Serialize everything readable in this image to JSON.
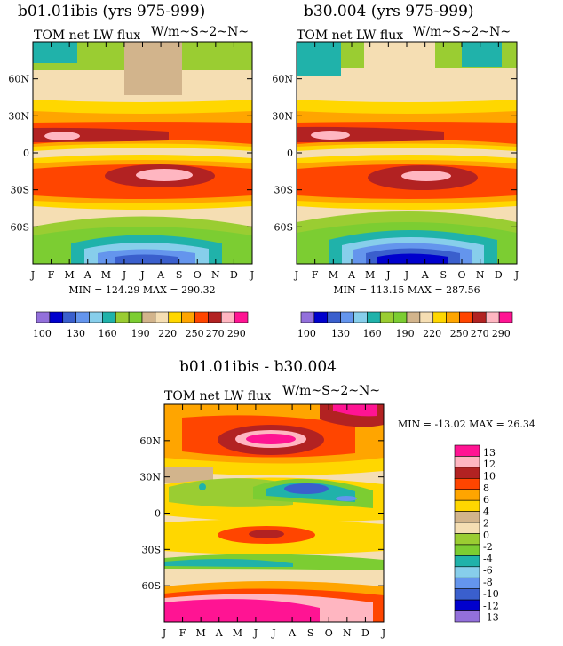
{
  "chart_data": [
    {
      "type": "heatmap",
      "title": "b01.01ibis (yrs 975-999)",
      "subtitle": "TOM net LW flux",
      "units": "W/m~S~2~N~",
      "x_categories": [
        "J",
        "F",
        "M",
        "A",
        "M",
        "J",
        "J",
        "A",
        "S",
        "O",
        "N",
        "D",
        "J"
      ],
      "y_ticks": [
        "60N",
        "30N",
        "0",
        "30S",
        "60S"
      ],
      "y_range_deg": [
        -90,
        90
      ],
      "stats": "MIN = 124.29  MAX = 290.32",
      "colorbar_labels": [
        "100",
        "130",
        "160",
        "190",
        "220",
        "250",
        "270",
        "290"
      ],
      "levels": [
        100,
        110,
        120,
        130,
        140,
        150,
        160,
        170,
        180,
        190,
        200,
        210,
        220,
        230,
        240,
        250,
        260,
        270,
        280,
        290
      ],
      "max_region": {
        "lat": -15,
        "month": "Jul-Aug",
        "value": 290.32
      },
      "min_region": {
        "lat": -85,
        "month": "Jul-Aug",
        "value": 124.29
      }
    },
    {
      "type": "heatmap",
      "title": "b30.004 (yrs 975-999)",
      "subtitle": "TOM net LW flux",
      "units": "W/m~S~2~N~",
      "x_categories": [
        "J",
        "F",
        "M",
        "A",
        "M",
        "J",
        "J",
        "A",
        "S",
        "O",
        "N",
        "D",
        "J"
      ],
      "y_ticks": [
        "60N",
        "30N",
        "0",
        "30S",
        "60S"
      ],
      "y_range_deg": [
        -90,
        90
      ],
      "stats": "MIN = 113.15  MAX = 287.56",
      "colorbar_labels": [
        "100",
        "130",
        "160",
        "190",
        "220",
        "250",
        "270",
        "290"
      ],
      "levels": [
        100,
        110,
        120,
        130,
        140,
        150,
        160,
        170,
        180,
        190,
        200,
        210,
        220,
        230,
        240,
        250,
        260,
        270,
        280,
        290
      ],
      "max_region": {
        "lat": -15,
        "month": "Jul-Aug",
        "value": 287.56
      },
      "min_region": {
        "lat": -85,
        "month": "Jul-Aug",
        "value": 113.15
      }
    },
    {
      "type": "heatmap",
      "title": "b01.01ibis - b30.004",
      "subtitle": "TOM net LW flux",
      "units": "W/m~S~2~N~",
      "x_categories": [
        "J",
        "F",
        "M",
        "A",
        "M",
        "J",
        "J",
        "A",
        "S",
        "O",
        "N",
        "D",
        "J"
      ],
      "y_ticks": [
        "60N",
        "30N",
        "0",
        "30S",
        "60S"
      ],
      "y_range_deg": [
        -90,
        90
      ],
      "stats": "MIN = -13.02  MAX =  26.34",
      "colorbar_labels": [
        "13",
        "12",
        "10",
        "8",
        "6",
        "4",
        "2",
        "0",
        "-2",
        "-4",
        "-6",
        "-8",
        "-10",
        "-12",
        "-13"
      ],
      "max_region": {
        "lat": -80,
        "month": "Jan-Jun",
        "value": 26.34
      },
      "min_region": {
        "lat": 20,
        "month": "Aug",
        "value": -13.02
      }
    }
  ],
  "colors": {
    "seq": [
      "#9370DB",
      "#0000CD",
      "#3A5FCD",
      "#6495ED",
      "#87CEEB",
      "#20B2AA",
      "#9ACD32",
      "#7CCD32",
      "#D2B48C",
      "#F5DEB3",
      "#FFD700",
      "#FFA500",
      "#FF4500",
      "#B22222",
      "#FFB6C1",
      "#FF1493"
    ],
    "diff": [
      "#FF1493",
      "#FFB6C1",
      "#B22222",
      "#FF4500",
      "#FFA500",
      "#FFD700",
      "#D2B48C",
      "#F5DEB3",
      "#9ACD32",
      "#7CCD32",
      "#20B2AA",
      "#87CEEB",
      "#6495ED",
      "#3A5FCD",
      "#0000CD",
      "#9370DB"
    ]
  }
}
